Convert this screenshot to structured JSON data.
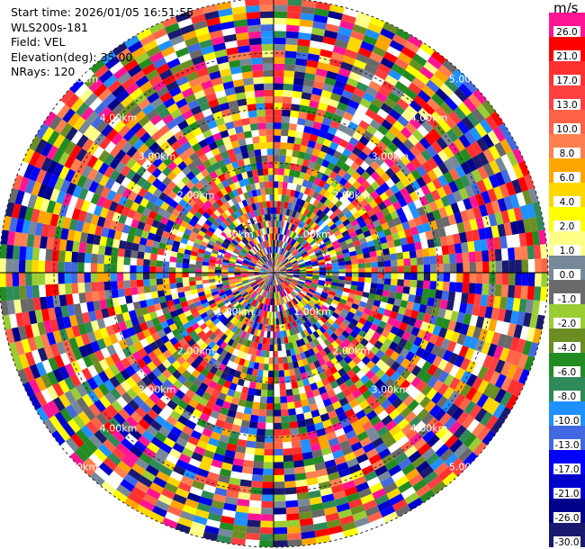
{
  "header": {
    "start_time": "Start time: 2026/01/05 16:51:55",
    "instrument": "WLS200s-181",
    "field": "Field: VEL",
    "elevation": "Elevation(deg): 35.00",
    "nrays": "NRays: 120"
  },
  "chart_data": {
    "type": "heatmap",
    "projection": "polar",
    "field": "VEL",
    "units": "m/s",
    "nrays": 120,
    "ring_labels": [
      "1.00km",
      "2.00km",
      "3.00km",
      "4.00km",
      "5.00km"
    ],
    "ring_label_angles_deg": [
      45,
      135,
      225,
      315
    ],
    "colorbar": {
      "label": "m/s",
      "ticks": [
        "26.0",
        "21.0",
        "17.0",
        "13.0",
        "10.0",
        "8.0",
        "6.0",
        "4.0",
        "2.0",
        "1.0",
        "0.0",
        "-1.0",
        "-2.0",
        "-4.0",
        "-6.0",
        "-8.0",
        "-10.0",
        "-13.0",
        "-17.0",
        "-21.0",
        "-26.0",
        "-30.0"
      ],
      "colors": [
        "#ff1493",
        "#ff0000",
        "#ff3030",
        "#ff4040",
        "#ff6347",
        "#ff7f50",
        "#ffa500",
        "#ffd700",
        "#ffff00",
        "#ffff88",
        "#778899",
        "#696969",
        "#9acd32",
        "#6b8e23",
        "#228b22",
        "#2e8b57",
        "#1e90ff",
        "#4169e1",
        "#0000ff",
        "#0000cd",
        "#00008b",
        "#191970"
      ]
    }
  }
}
